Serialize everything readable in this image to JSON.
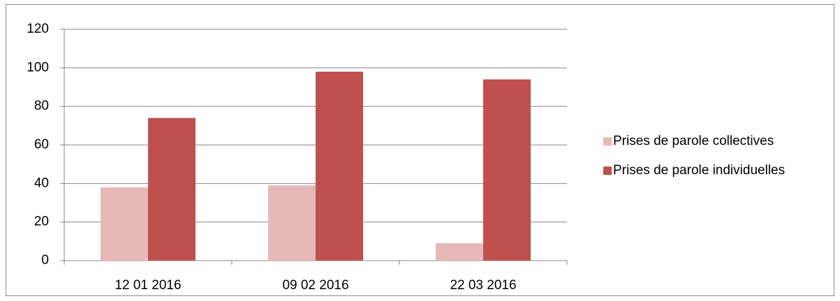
{
  "chart_data": {
    "type": "bar",
    "categories": [
      "12 01 2016",
      "09 02 2016",
      "22 03 2016"
    ],
    "series": [
      {
        "name": "Prises de parole collectives",
        "color": "#e6b9b8",
        "values": [
          38,
          39,
          9
        ]
      },
      {
        "name": "Prises de parole individuelles",
        "color": "#c0504d",
        "values": [
          74,
          98,
          94
        ]
      }
    ],
    "ylim": [
      0,
      120
    ],
    "yticks": [
      0,
      20,
      40,
      60,
      80,
      100,
      120
    ],
    "grid": true,
    "legend": "right"
  }
}
